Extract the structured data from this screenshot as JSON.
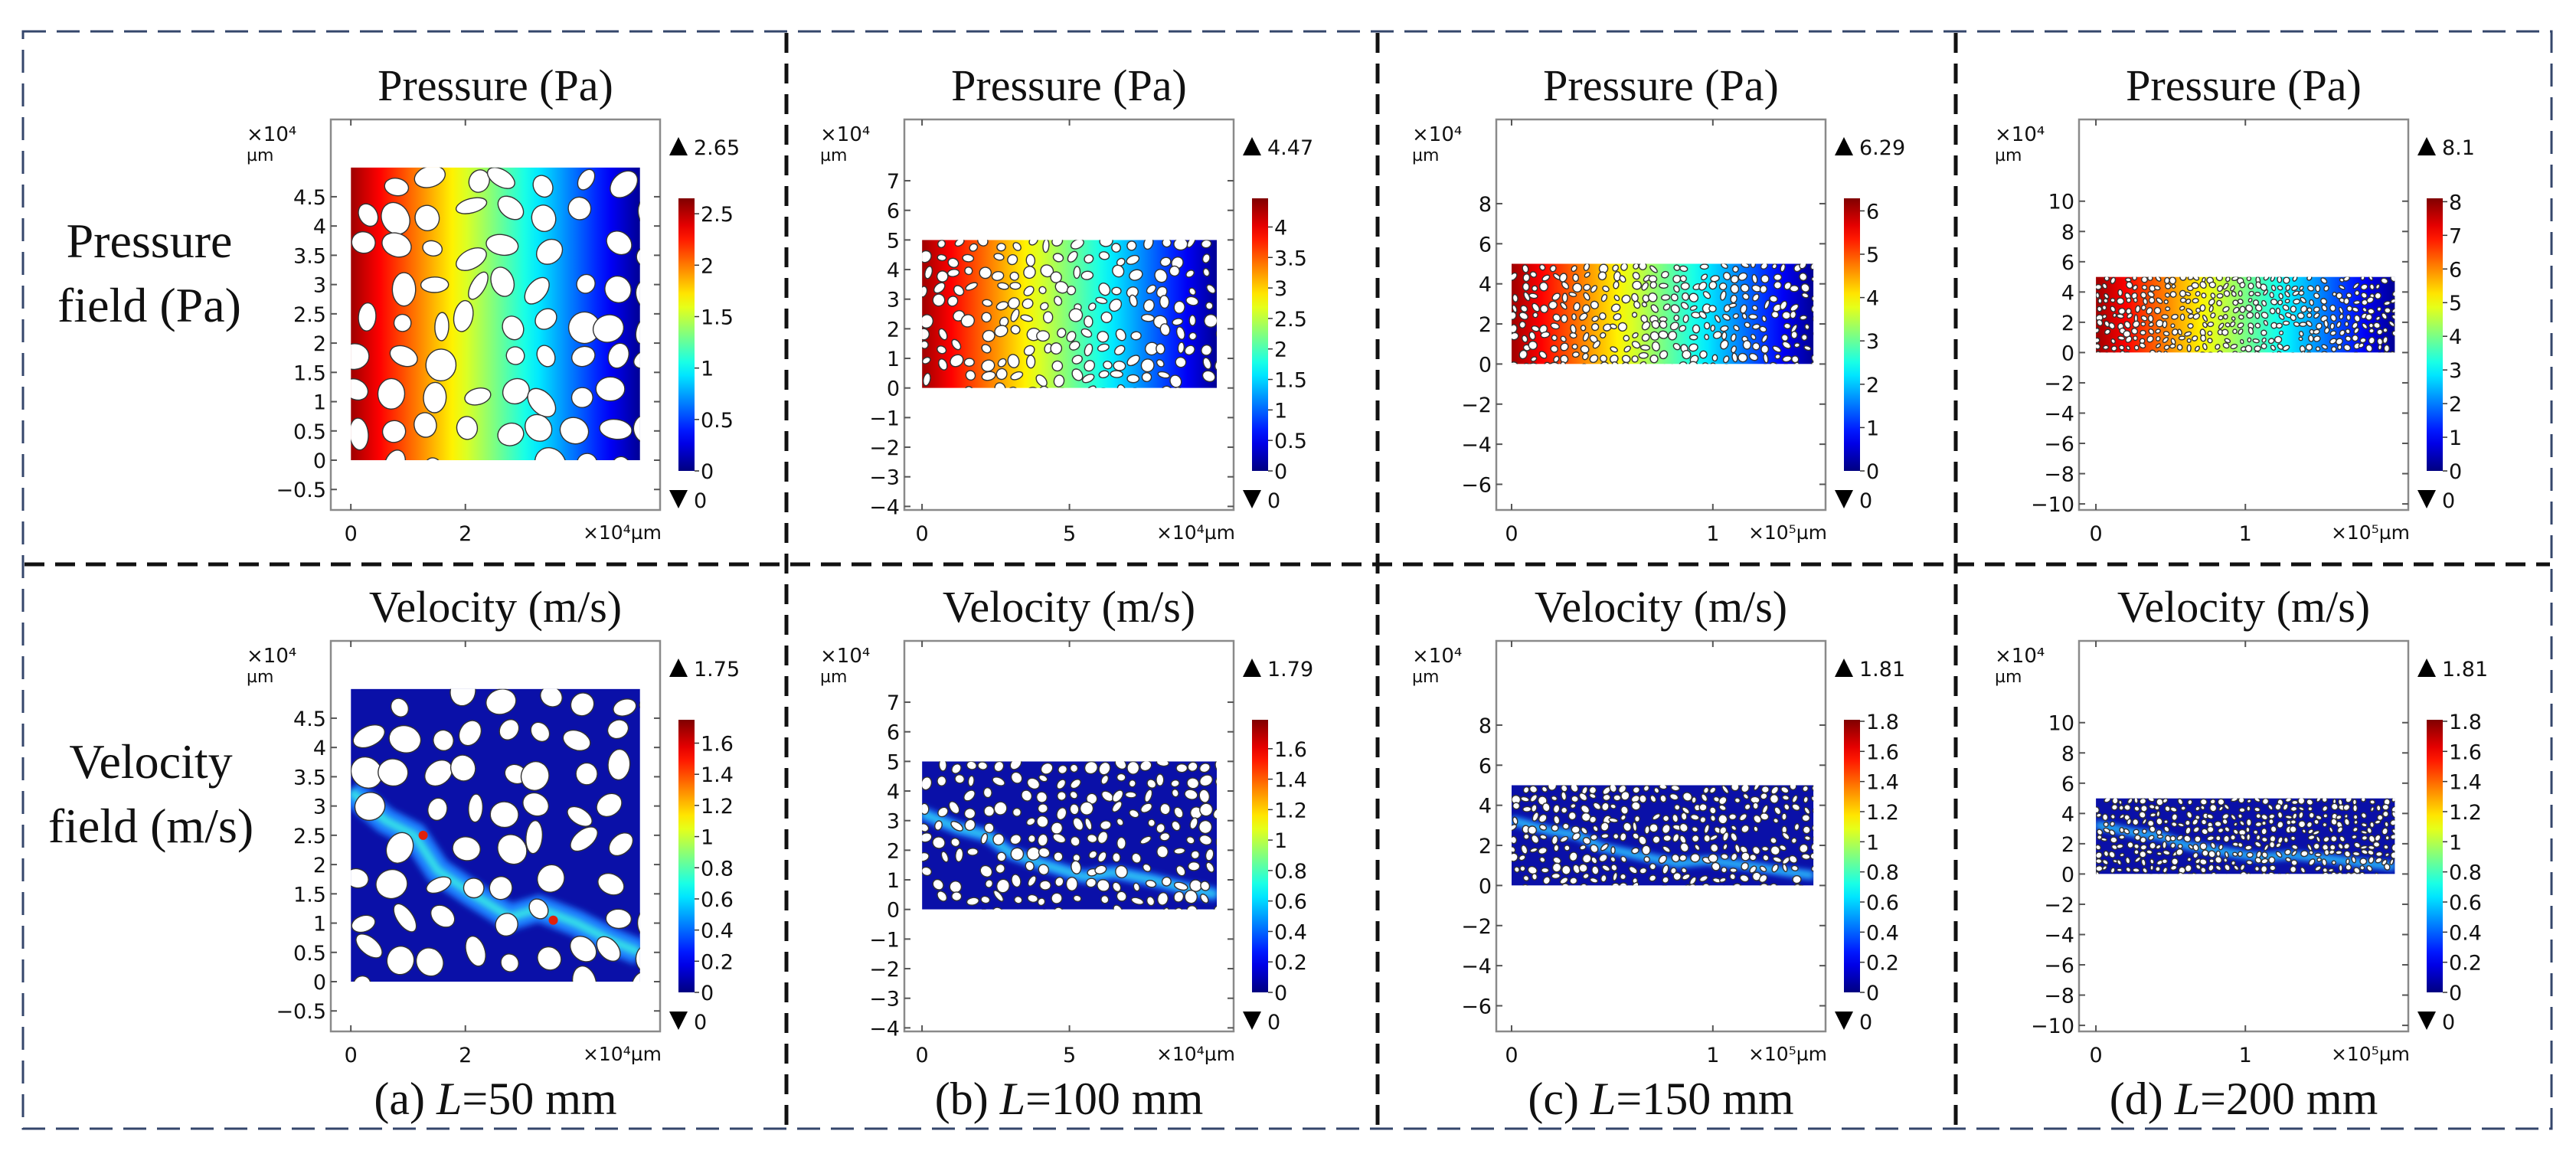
{
  "row_labels": [
    {
      "line1": "Pressure",
      "line2": "field (Pa)"
    },
    {
      "line1": "Velocity",
      "line2": "field (m/s)"
    }
  ],
  "captions": [
    {
      "prefix": "(a) ",
      "var": "L",
      "rest": "=50 mm"
    },
    {
      "prefix": "(b) ",
      "var": "L",
      "rest": "=100 mm"
    },
    {
      "prefix": "(c) ",
      "var": "L",
      "rest": "=150 mm"
    },
    {
      "prefix": "(d) ",
      "var": "L",
      "rest": "=200 mm"
    }
  ],
  "colors": {
    "outer_border": "#34466b",
    "divider": "#111111",
    "frame": "#8a8a8a",
    "background_field": "#00008f"
  },
  "chart_data": [
    {
      "type": "heatmap",
      "field": "pressure",
      "title": "Pressure (Pa)",
      "y_unit_scale": "×10⁴",
      "y_unit": "µm",
      "x_unit": "×10⁴µm",
      "xlim": [
        -0.35,
        5.4
      ],
      "ylim": [
        -0.85,
        5.82
      ],
      "domain_x": [
        0,
        5.05
      ],
      "domain_y": [
        0,
        5
      ],
      "x_per_y_unit": 1,
      "xticks": [
        {
          "value": 0,
          "label": "0"
        },
        {
          "value": 2,
          "label": "2"
        }
      ],
      "yticks": [
        {
          "value": -0.5,
          "label": "−0.5"
        },
        {
          "value": 0,
          "label": "0"
        },
        {
          "value": 0.5,
          "label": "0.5"
        },
        {
          "value": 1,
          "label": "1"
        },
        {
          "value": 1.5,
          "label": "1.5"
        },
        {
          "value": 2,
          "label": "2"
        },
        {
          "value": 2.5,
          "label": "2.5"
        },
        {
          "value": 3,
          "label": "3"
        },
        {
          "value": 3.5,
          "label": "3.5"
        },
        {
          "value": 4,
          "label": "4"
        },
        {
          "value": 4.5,
          "label": "4.5"
        }
      ],
      "colorbar": {
        "max": 2.65,
        "min": 0,
        "max_label": "2.65",
        "min_label": "0",
        "ticks": [
          {
            "value": 0,
            "label": "0"
          },
          {
            "value": 0.5,
            "label": "0.5"
          },
          {
            "value": 1,
            "label": "1"
          },
          {
            "value": 1.5,
            "label": "1.5"
          },
          {
            "value": 2,
            "label": "2"
          },
          {
            "value": 2.5,
            "label": "2.5"
          }
        ]
      }
    },
    {
      "type": "heatmap",
      "field": "pressure",
      "title": "Pressure (Pa)",
      "y_unit_scale": "×10⁴",
      "y_unit": "µm",
      "x_unit": "×10⁴µm",
      "xlim": [
        -0.6,
        10.57
      ],
      "ylim": [
        -4.12,
        9.07
      ],
      "domain_x": [
        0,
        10
      ],
      "domain_y": [
        0,
        5
      ],
      "x_per_y_unit": 1,
      "xticks": [
        {
          "value": 0,
          "label": "0"
        },
        {
          "value": 5,
          "label": "5"
        }
      ],
      "yticks": [
        {
          "value": -4,
          "label": "−4"
        },
        {
          "value": -3,
          "label": "−3"
        },
        {
          "value": -2,
          "label": "−2"
        },
        {
          "value": -1,
          "label": "−1"
        },
        {
          "value": 0,
          "label": "0"
        },
        {
          "value": 1,
          "label": "1"
        },
        {
          "value": 2,
          "label": "2"
        },
        {
          "value": 3,
          "label": "3"
        },
        {
          "value": 4,
          "label": "4"
        },
        {
          "value": 5,
          "label": "5"
        },
        {
          "value": 6,
          "label": "6"
        },
        {
          "value": 7,
          "label": "7"
        }
      ],
      "colorbar": {
        "max": 4.47,
        "min": 0,
        "max_label": "4.47",
        "min_label": "0",
        "ticks": [
          {
            "value": 0,
            "label": "0"
          },
          {
            "value": 0.5,
            "label": "0.5"
          },
          {
            "value": 1,
            "label": "1"
          },
          {
            "value": 1.5,
            "label": "1.5"
          },
          {
            "value": 2,
            "label": "2"
          },
          {
            "value": 2.5,
            "label": "2.5"
          },
          {
            "value": 3,
            "label": "3"
          },
          {
            "value": 3.5,
            "label": "3.5"
          },
          {
            "value": 4,
            "label": "4"
          }
        ]
      }
    },
    {
      "type": "heatmap",
      "field": "pressure",
      "title": "Pressure (Pa)",
      "y_unit_scale": "×10⁴",
      "y_unit": "µm",
      "x_unit": "×10⁵µm",
      "xlim": [
        -0.076,
        1.56
      ],
      "ylim": [
        -7.28,
        12.2
      ],
      "domain_x": [
        0,
        1.5
      ],
      "domain_y": [
        0,
        5
      ],
      "x_per_y_unit": 10,
      "xticks": [
        {
          "value": 0,
          "label": "0"
        },
        {
          "value": 1,
          "label": "1"
        }
      ],
      "yticks": [
        {
          "value": -6,
          "label": "−6"
        },
        {
          "value": -4,
          "label": "−4"
        },
        {
          "value": -2,
          "label": "−2"
        },
        {
          "value": 0,
          "label": "0"
        },
        {
          "value": 2,
          "label": "2"
        },
        {
          "value": 4,
          "label": "4"
        },
        {
          "value": 6,
          "label": "6"
        },
        {
          "value": 8,
          "label": "8"
        }
      ],
      "colorbar": {
        "max": 6.29,
        "min": 0,
        "max_label": "6.29",
        "min_label": "0",
        "ticks": [
          {
            "value": 0,
            "label": "0"
          },
          {
            "value": 1,
            "label": "1"
          },
          {
            "value": 2,
            "label": "2"
          },
          {
            "value": 3,
            "label": "3"
          },
          {
            "value": 4,
            "label": "4"
          },
          {
            "value": 5,
            "label": "5"
          },
          {
            "value": 6,
            "label": "6"
          }
        ]
      }
    },
    {
      "type": "heatmap",
      "field": "pressure",
      "title": "Pressure (Pa)",
      "y_unit_scale": "×10⁴",
      "y_unit": "µm",
      "x_unit": "×10⁵µm",
      "xlim": [
        -0.113,
        2.09
      ],
      "ylim": [
        -10.4,
        15.4
      ],
      "domain_x": [
        0,
        2.0
      ],
      "domain_y": [
        0,
        5
      ],
      "x_per_y_unit": 10,
      "xticks": [
        {
          "value": 0,
          "label": "0"
        },
        {
          "value": 1,
          "label": "1"
        }
      ],
      "yticks": [
        {
          "value": -10,
          "label": "−10"
        },
        {
          "value": -8,
          "label": "−8"
        },
        {
          "value": -6,
          "label": "−6"
        },
        {
          "value": -4,
          "label": "−4"
        },
        {
          "value": -2,
          "label": "−2"
        },
        {
          "value": 0,
          "label": "0"
        },
        {
          "value": 2,
          "label": "2"
        },
        {
          "value": 4,
          "label": "4"
        },
        {
          "value": 6,
          "label": "6"
        },
        {
          "value": 8,
          "label": "8"
        },
        {
          "value": 10,
          "label": "10"
        }
      ],
      "colorbar": {
        "max": 8.1,
        "min": 0,
        "max_label": "8.1",
        "min_label": "0",
        "ticks": [
          {
            "value": 0,
            "label": "0"
          },
          {
            "value": 1,
            "label": "1"
          },
          {
            "value": 2,
            "label": "2"
          },
          {
            "value": 3,
            "label": "3"
          },
          {
            "value": 4,
            "label": "4"
          },
          {
            "value": 5,
            "label": "5"
          },
          {
            "value": 6,
            "label": "6"
          },
          {
            "value": 7,
            "label": "7"
          },
          {
            "value": 8,
            "label": "8"
          }
        ]
      }
    },
    {
      "type": "heatmap",
      "field": "velocity",
      "title": "Velocity (m/s)",
      "y_unit_scale": "×10⁴",
      "y_unit": "µm",
      "x_unit": "×10⁴µm",
      "xlim": [
        -0.35,
        5.4
      ],
      "ylim": [
        -0.85,
        5.82
      ],
      "domain_x": [
        0,
        5.05
      ],
      "domain_y": [
        0,
        5
      ],
      "x_per_y_unit": 1,
      "xticks": [
        {
          "value": 0,
          "label": "0"
        },
        {
          "value": 2,
          "label": "2"
        }
      ],
      "yticks": [
        {
          "value": -0.5,
          "label": "−0.5"
        },
        {
          "value": 0,
          "label": "0"
        },
        {
          "value": 0.5,
          "label": "0.5"
        },
        {
          "value": 1,
          "label": "1"
        },
        {
          "value": 1.5,
          "label": "1.5"
        },
        {
          "value": 2,
          "label": "2"
        },
        {
          "value": 2.5,
          "label": "2.5"
        },
        {
          "value": 3,
          "label": "3"
        },
        {
          "value": 3.5,
          "label": "3.5"
        },
        {
          "value": 4,
          "label": "4"
        },
        {
          "value": 4.5,
          "label": "4.5"
        }
      ],
      "colorbar": {
        "max": 1.75,
        "min": 0,
        "max_label": "1.75",
        "min_label": "0",
        "ticks": [
          {
            "value": 0,
            "label": "0"
          },
          {
            "value": 0.2,
            "label": "0.2"
          },
          {
            "value": 0.4,
            "label": "0.4"
          },
          {
            "value": 0.6,
            "label": "0.6"
          },
          {
            "value": 0.8,
            "label": "0.8"
          },
          {
            "value": 1,
            "label": "1"
          },
          {
            "value": 1.2,
            "label": "1.2"
          },
          {
            "value": 1.4,
            "label": "1.4"
          },
          {
            "value": 1.6,
            "label": "1.6"
          }
        ]
      }
    },
    {
      "type": "heatmap",
      "field": "velocity",
      "title": "Velocity (m/s)",
      "y_unit_scale": "×10⁴",
      "y_unit": "µm",
      "x_unit": "×10⁴µm",
      "xlim": [
        -0.6,
        10.57
      ],
      "ylim": [
        -4.12,
        9.07
      ],
      "domain_x": [
        0,
        10
      ],
      "domain_y": [
        0,
        5
      ],
      "x_per_y_unit": 1,
      "xticks": [
        {
          "value": 0,
          "label": "0"
        },
        {
          "value": 5,
          "label": "5"
        }
      ],
      "yticks": [
        {
          "value": -4,
          "label": "−4"
        },
        {
          "value": -3,
          "label": "−3"
        },
        {
          "value": -2,
          "label": "−2"
        },
        {
          "value": -1,
          "label": "−1"
        },
        {
          "value": 0,
          "label": "0"
        },
        {
          "value": 1,
          "label": "1"
        },
        {
          "value": 2,
          "label": "2"
        },
        {
          "value": 3,
          "label": "3"
        },
        {
          "value": 4,
          "label": "4"
        },
        {
          "value": 5,
          "label": "5"
        },
        {
          "value": 6,
          "label": "6"
        },
        {
          "value": 7,
          "label": "7"
        }
      ],
      "colorbar": {
        "max": 1.79,
        "min": 0,
        "max_label": "1.79",
        "min_label": "0",
        "ticks": [
          {
            "value": 0,
            "label": "0"
          },
          {
            "value": 0.2,
            "label": "0.2"
          },
          {
            "value": 0.4,
            "label": "0.4"
          },
          {
            "value": 0.6,
            "label": "0.6"
          },
          {
            "value": 0.8,
            "label": "0.8"
          },
          {
            "value": 1,
            "label": "1"
          },
          {
            "value": 1.2,
            "label": "1.2"
          },
          {
            "value": 1.4,
            "label": "1.4"
          },
          {
            "value": 1.6,
            "label": "1.6"
          }
        ]
      }
    },
    {
      "type": "heatmap",
      "field": "velocity",
      "title": "Velocity (m/s)",
      "y_unit_scale": "×10⁴",
      "y_unit": "µm",
      "x_unit": "×10⁵µm",
      "xlim": [
        -0.076,
        1.56
      ],
      "ylim": [
        -7.28,
        12.2
      ],
      "domain_x": [
        0,
        1.5
      ],
      "domain_y": [
        0,
        5
      ],
      "x_per_y_unit": 10,
      "xticks": [
        {
          "value": 0,
          "label": "0"
        },
        {
          "value": 1,
          "label": "1"
        }
      ],
      "yticks": [
        {
          "value": -6,
          "label": "−6"
        },
        {
          "value": -4,
          "label": "−4"
        },
        {
          "value": -2,
          "label": "−2"
        },
        {
          "value": 0,
          "label": "0"
        },
        {
          "value": 2,
          "label": "2"
        },
        {
          "value": 4,
          "label": "4"
        },
        {
          "value": 6,
          "label": "6"
        },
        {
          "value": 8,
          "label": "8"
        }
      ],
      "colorbar": {
        "max": 1.81,
        "min": 0,
        "max_label": "1.81",
        "min_label": "0",
        "ticks": [
          {
            "value": 0,
            "label": "0"
          },
          {
            "value": 0.2,
            "label": "0.2"
          },
          {
            "value": 0.4,
            "label": "0.4"
          },
          {
            "value": 0.6,
            "label": "0.6"
          },
          {
            "value": 0.8,
            "label": "0.8"
          },
          {
            "value": 1,
            "label": "1"
          },
          {
            "value": 1.2,
            "label": "1.2"
          },
          {
            "value": 1.4,
            "label": "1.4"
          },
          {
            "value": 1.6,
            "label": "1.6"
          },
          {
            "value": 1.8,
            "label": "1.8"
          }
        ]
      }
    },
    {
      "type": "heatmap",
      "field": "velocity",
      "title": "Velocity (m/s)",
      "y_unit_scale": "×10⁴",
      "y_unit": "µm",
      "x_unit": "×10⁵µm",
      "xlim": [
        -0.113,
        2.09
      ],
      "ylim": [
        -10.4,
        15.4
      ],
      "domain_x": [
        0,
        2.0
      ],
      "domain_y": [
        0,
        5
      ],
      "x_per_y_unit": 10,
      "xticks": [
        {
          "value": 0,
          "label": "0"
        },
        {
          "value": 1,
          "label": "1"
        }
      ],
      "yticks": [
        {
          "value": -10,
          "label": "−10"
        },
        {
          "value": -8,
          "label": "−8"
        },
        {
          "value": -6,
          "label": "−6"
        },
        {
          "value": -4,
          "label": "−4"
        },
        {
          "value": -2,
          "label": "−2"
        },
        {
          "value": 0,
          "label": "0"
        },
        {
          "value": 2,
          "label": "2"
        },
        {
          "value": 4,
          "label": "4"
        },
        {
          "value": 6,
          "label": "6"
        },
        {
          "value": 8,
          "label": "8"
        },
        {
          "value": 10,
          "label": "10"
        }
      ],
      "colorbar": {
        "max": 1.81,
        "min": 0,
        "max_label": "1.81",
        "min_label": "0",
        "ticks": [
          {
            "value": 0,
            "label": "0"
          },
          {
            "value": 0.2,
            "label": "0.2"
          },
          {
            "value": 0.4,
            "label": "0.4"
          },
          {
            "value": 0.6,
            "label": "0.6"
          },
          {
            "value": 0.8,
            "label": "0.8"
          },
          {
            "value": 1,
            "label": "1"
          },
          {
            "value": 1.2,
            "label": "1.2"
          },
          {
            "value": 1.4,
            "label": "1.4"
          },
          {
            "value": 1.6,
            "label": "1.6"
          },
          {
            "value": 1.8,
            "label": "1.8"
          }
        ]
      }
    }
  ]
}
